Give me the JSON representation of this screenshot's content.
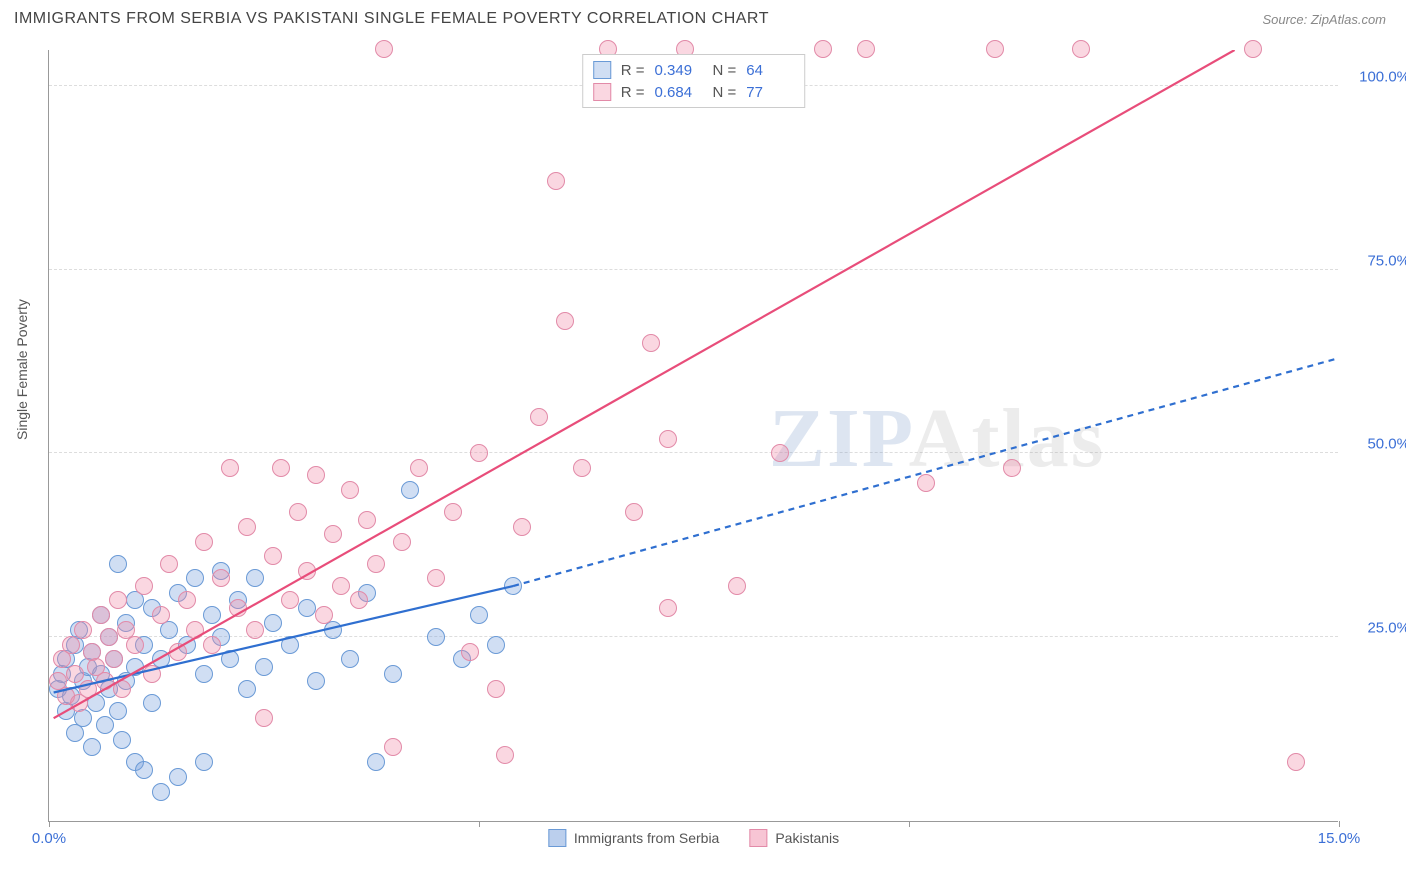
{
  "header": {
    "title": "IMMIGRANTS FROM SERBIA VS PAKISTANI SINGLE FEMALE POVERTY CORRELATION CHART",
    "source": "Source: ZipAtlas.com"
  },
  "chart": {
    "type": "scatter",
    "ylabel": "Single Female Poverty",
    "watermark": {
      "part1": "ZIP",
      "part2": "Atlas"
    },
    "xlim": [
      0,
      15
    ],
    "ylim": [
      0,
      105
    ],
    "xticks": [
      0,
      5,
      10,
      15
    ],
    "xtick_labels": [
      "0.0%",
      "",
      "",
      "15.0%"
    ],
    "yticks": [
      25,
      50,
      75,
      100
    ],
    "ytick_labels": [
      "25.0%",
      "50.0%",
      "75.0%",
      "100.0%"
    ],
    "grid_color": "#dddddd",
    "axis_color": "#999999",
    "background_color": "#ffffff",
    "point_radius": 9,
    "series": [
      {
        "name": "Immigrants from Serbia",
        "fill": "rgba(120,160,220,0.35)",
        "stroke": "#6a9ad6",
        "R": "0.349",
        "N": "64",
        "regression": {
          "solid": {
            "x1": 0.05,
            "y1": 17.5,
            "x2": 5.4,
            "y2": 32.0
          },
          "dashed": {
            "x1": 5.4,
            "y1": 32.0,
            "x2": 15.0,
            "y2": 63.0
          },
          "color": "#2f6fd0",
          "width": 2.2,
          "dash": "6,5"
        },
        "points": [
          [
            0.1,
            18
          ],
          [
            0.15,
            20
          ],
          [
            0.2,
            15
          ],
          [
            0.2,
            22
          ],
          [
            0.25,
            17
          ],
          [
            0.3,
            24
          ],
          [
            0.3,
            12
          ],
          [
            0.35,
            26
          ],
          [
            0.4,
            19
          ],
          [
            0.4,
            14
          ],
          [
            0.45,
            21
          ],
          [
            0.5,
            23
          ],
          [
            0.5,
            10
          ],
          [
            0.55,
            16
          ],
          [
            0.6,
            28
          ],
          [
            0.6,
            20
          ],
          [
            0.65,
            13
          ],
          [
            0.7,
            25
          ],
          [
            0.7,
            18
          ],
          [
            0.75,
            22
          ],
          [
            0.8,
            35
          ],
          [
            0.8,
            15
          ],
          [
            0.85,
            11
          ],
          [
            0.9,
            27
          ],
          [
            0.9,
            19
          ],
          [
            1.0,
            30
          ],
          [
            1.0,
            8
          ],
          [
            1.0,
            21
          ],
          [
            1.1,
            24
          ],
          [
            1.1,
            7
          ],
          [
            1.2,
            29
          ],
          [
            1.2,
            16
          ],
          [
            1.3,
            22
          ],
          [
            1.3,
            4
          ],
          [
            1.4,
            26
          ],
          [
            1.5,
            31
          ],
          [
            1.5,
            6
          ],
          [
            1.6,
            24
          ],
          [
            1.7,
            33
          ],
          [
            1.8,
            20
          ],
          [
            1.8,
            8
          ],
          [
            1.9,
            28
          ],
          [
            2.0,
            25
          ],
          [
            2.0,
            34
          ],
          [
            2.1,
            22
          ],
          [
            2.2,
            30
          ],
          [
            2.3,
            18
          ],
          [
            2.4,
            33
          ],
          [
            2.5,
            21
          ],
          [
            2.6,
            27
          ],
          [
            2.8,
            24
          ],
          [
            3.0,
            29
          ],
          [
            3.1,
            19
          ],
          [
            3.3,
            26
          ],
          [
            3.5,
            22
          ],
          [
            3.7,
            31
          ],
          [
            3.8,
            8
          ],
          [
            4.0,
            20
          ],
          [
            4.2,
            45
          ],
          [
            4.5,
            25
          ],
          [
            4.8,
            22
          ],
          [
            5.0,
            28
          ],
          [
            5.2,
            24
          ],
          [
            5.4,
            32
          ]
        ]
      },
      {
        "name": "Pakistanis",
        "fill": "rgba(240,140,170,0.35)",
        "stroke": "#e28aa8",
        "R": "0.684",
        "N": "77",
        "regression": {
          "solid": {
            "x1": 0.05,
            "y1": 14.0,
            "x2": 13.8,
            "y2": 105.0
          },
          "color": "#e84d7a",
          "width": 2.2
        },
        "points": [
          [
            0.1,
            19
          ],
          [
            0.15,
            22
          ],
          [
            0.2,
            17
          ],
          [
            0.25,
            24
          ],
          [
            0.3,
            20
          ],
          [
            0.35,
            16
          ],
          [
            0.4,
            26
          ],
          [
            0.45,
            18
          ],
          [
            0.5,
            23
          ],
          [
            0.55,
            21
          ],
          [
            0.6,
            28
          ],
          [
            0.65,
            19
          ],
          [
            0.7,
            25
          ],
          [
            0.75,
            22
          ],
          [
            0.8,
            30
          ],
          [
            0.85,
            18
          ],
          [
            0.9,
            26
          ],
          [
            1.0,
            24
          ],
          [
            1.1,
            32
          ],
          [
            1.2,
            20
          ],
          [
            1.3,
            28
          ],
          [
            1.4,
            35
          ],
          [
            1.5,
            23
          ],
          [
            1.6,
            30
          ],
          [
            1.7,
            26
          ],
          [
            1.8,
            38
          ],
          [
            1.9,
            24
          ],
          [
            2.0,
            33
          ],
          [
            2.1,
            48
          ],
          [
            2.2,
            29
          ],
          [
            2.3,
            40
          ],
          [
            2.4,
            26
          ],
          [
            2.5,
            14
          ],
          [
            2.6,
            36
          ],
          [
            2.7,
            48
          ],
          [
            2.8,
            30
          ],
          [
            2.9,
            42
          ],
          [
            3.0,
            34
          ],
          [
            3.1,
            47
          ],
          [
            3.2,
            28
          ],
          [
            3.3,
            39
          ],
          [
            3.4,
            32
          ],
          [
            3.5,
            45
          ],
          [
            3.6,
            30
          ],
          [
            3.7,
            41
          ],
          [
            3.8,
            35
          ],
          [
            3.9,
            105
          ],
          [
            4.0,
            10
          ],
          [
            4.1,
            38
          ],
          [
            4.3,
            48
          ],
          [
            4.5,
            33
          ],
          [
            4.7,
            42
          ],
          [
            4.9,
            23
          ],
          [
            5.0,
            50
          ],
          [
            5.2,
            18
          ],
          [
            5.3,
            9
          ],
          [
            5.5,
            40
          ],
          [
            5.7,
            55
          ],
          [
            5.9,
            87
          ],
          [
            6.0,
            68
          ],
          [
            6.2,
            48
          ],
          [
            6.5,
            105
          ],
          [
            6.8,
            42
          ],
          [
            7.0,
            65
          ],
          [
            7.2,
            52
          ],
          [
            7.2,
            29
          ],
          [
            7.4,
            105
          ],
          [
            8.0,
            32
          ],
          [
            8.5,
            50
          ],
          [
            9.0,
            105
          ],
          [
            9.5,
            105
          ],
          [
            10.2,
            46
          ],
          [
            11.0,
            105
          ],
          [
            11.2,
            48
          ],
          [
            12.0,
            105
          ],
          [
            14.0,
            105
          ],
          [
            14.5,
            8
          ]
        ]
      }
    ],
    "bottom_legend": [
      {
        "label": "Immigrants from Serbia",
        "fill": "rgba(120,160,220,0.5)",
        "stroke": "#6a9ad6"
      },
      {
        "label": "Pakistanis",
        "fill": "rgba(240,140,170,0.5)",
        "stroke": "#e28aa8"
      }
    ]
  }
}
